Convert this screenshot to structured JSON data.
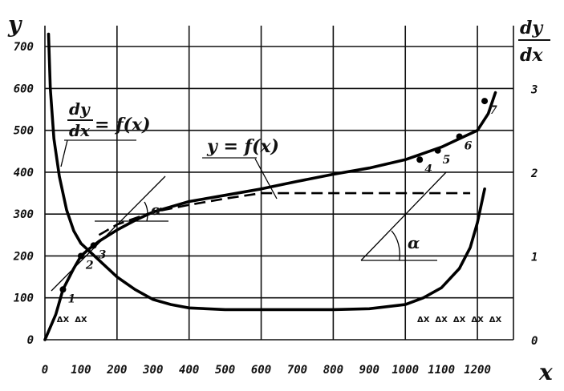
{
  "chart_data": {
    "type": "line",
    "xlabel": "x",
    "ylabel": "y",
    "y2label_num": "dy",
    "y2label_den": "dx",
    "xlim": [
      0,
      1300
    ],
    "ylim": [
      0,
      750
    ],
    "y2lim": [
      0,
      3.75
    ],
    "x_ticks": [
      "0",
      "100",
      "200",
      "300",
      "400",
      "500",
      "600",
      "700",
      "800",
      "900",
      "1000",
      "1100",
      "1200"
    ],
    "y_ticks": [
      "0",
      "100",
      "200",
      "300",
      "400",
      "500",
      "600",
      "700"
    ],
    "y2_ticks": [
      "0",
      "1",
      "2",
      "3"
    ],
    "grid": true,
    "series": [
      {
        "name": "y = f(x)",
        "axis": "left",
        "x": [
          0,
          30,
          50,
          80,
          100,
          120,
          150,
          200,
          250,
          300,
          400,
          500,
          600,
          700,
          800,
          900,
          1000,
          1050,
          1100,
          1150,
          1200,
          1230,
          1250
        ],
        "y": [
          0,
          60,
          120,
          170,
          200,
          215,
          235,
          262,
          285,
          305,
          330,
          345,
          360,
          378,
          395,
          410,
          430,
          445,
          460,
          480,
          500,
          540,
          590
        ]
      },
      {
        "name": "dy/dx = f(x)",
        "axis": "right",
        "x": [
          10,
          15,
          25,
          40,
          60,
          80,
          100,
          150,
          200,
          250,
          300,
          350,
          400,
          500,
          600,
          700,
          800,
          900,
          1000,
          1050,
          1100,
          1150,
          1180,
          1200,
          1220
        ],
        "y": [
          3.65,
          3.0,
          2.4,
          1.95,
          1.55,
          1.3,
          1.15,
          0.95,
          0.75,
          0.6,
          0.48,
          0.42,
          0.38,
          0.36,
          0.36,
          0.36,
          0.36,
          0.37,
          0.42,
          0.5,
          0.62,
          0.85,
          1.1,
          1.4,
          1.8
        ]
      },
      {
        "name": "",
        "axis": "left",
        "style": "dashed",
        "x": [
          150,
          200,
          300,
          400,
          500,
          600,
          700,
          800,
          900,
          1000,
          1100,
          1150,
          1180
        ],
        "y": [
          250,
          275,
          305,
          322,
          337,
          350,
          350,
          350,
          350,
          350,
          350,
          350,
          350
        ]
      }
    ],
    "points": [
      {
        "label": "1",
        "x": 50,
        "y": 120
      },
      {
        "label": "2",
        "x": 100,
        "y": 200
      },
      {
        "label": "3",
        "x": 135,
        "y": 225
      },
      {
        "label": "4",
        "x": 1040,
        "y": 430
      },
      {
        "label": "5",
        "x": 1090,
        "y": 452
      },
      {
        "label": "6",
        "x": 1150,
        "y": 485
      },
      {
        "label": "7",
        "x": 1220,
        "y": 570
      }
    ],
    "annotations": {
      "y_func": "y = f(x)",
      "dydx_num": "dy",
      "dydx_den": "dx",
      "dydx_rhs": "= f(x)",
      "alpha": "α",
      "delta_x": "ΔX"
    }
  }
}
